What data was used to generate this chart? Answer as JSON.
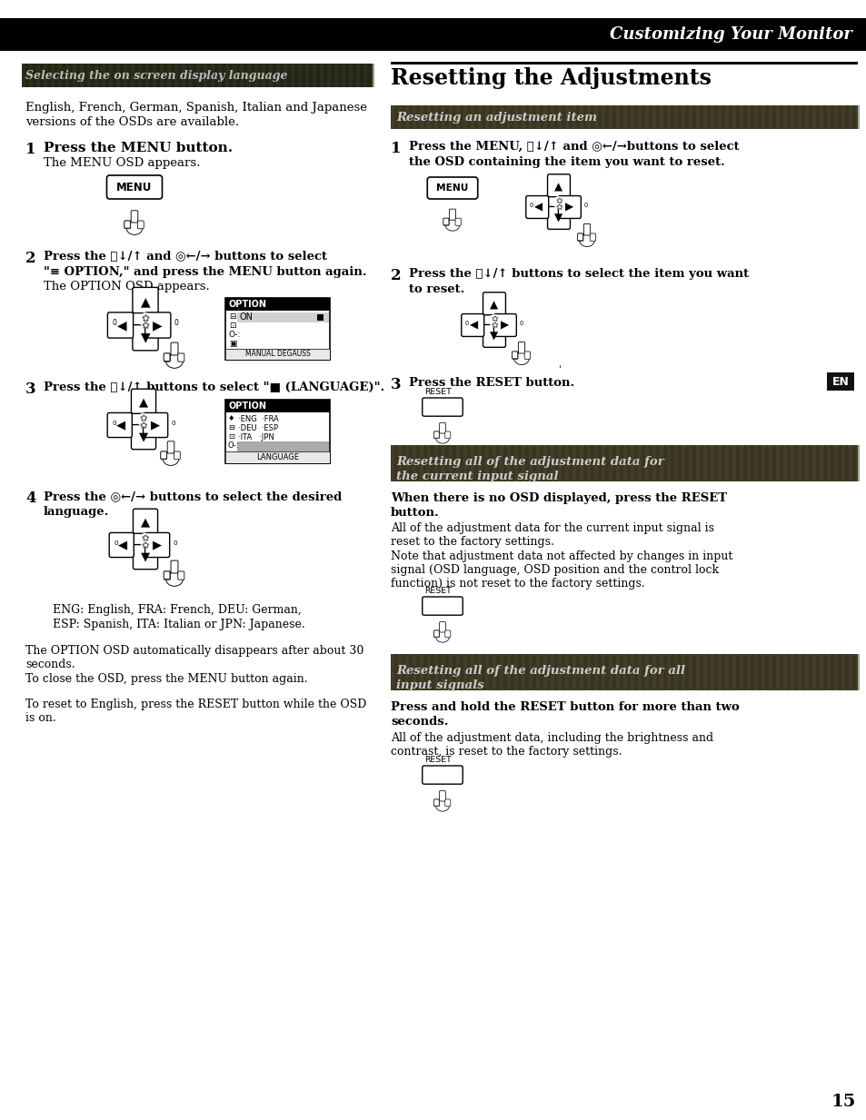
{
  "page_bg": "#ffffff",
  "header_bg": "#000000",
  "header_text": "Customizing Your Monitor",
  "header_text_color": "#ffffff",
  "left_header_text": "Selecting the on screen display language",
  "right_section_header": "Resetting the Adjustments",
  "right_sub1_text": "Resetting an adjustment item",
  "right_sub2_line1": "Resetting all of the adjustment data for",
  "right_sub2_line2": "the current input signal",
  "right_sub3_line1": "Resetting all of the adjustment data for all",
  "right_sub3_line2": "input signals",
  "left_intro_line1": "English, French, German, Spanish, Italian and Japanese",
  "left_intro_line2": "versions of the OSDs are available.",
  "page_number": "15",
  "col_div": 415,
  "lmargin": 28,
  "rstart": 430
}
